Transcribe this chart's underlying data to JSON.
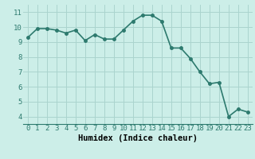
{
  "x": [
    0,
    1,
    2,
    3,
    4,
    5,
    6,
    7,
    8,
    9,
    10,
    11,
    12,
    13,
    14,
    15,
    16,
    17,
    18,
    19,
    20,
    21,
    22,
    23
  ],
  "y": [
    9.3,
    9.9,
    9.9,
    9.8,
    9.6,
    9.8,
    9.1,
    9.5,
    9.2,
    9.2,
    9.8,
    10.4,
    10.8,
    10.8,
    10.4,
    8.6,
    8.6,
    7.9,
    7.0,
    6.2,
    6.3,
    4.0,
    4.5,
    4.3
  ],
  "line_color": "#2d7a6e",
  "marker": "o",
  "marker_size": 2.5,
  "line_width": 1.2,
  "bg_color": "#cceee8",
  "grid_color": "#aad4ce",
  "xlabel": "Humidex (Indice chaleur)",
  "xlabel_fontsize": 7.5,
  "tick_fontsize": 6.5,
  "xlim": [
    -0.5,
    23.5
  ],
  "ylim": [
    3.5,
    11.5
  ],
  "yticks": [
    4,
    5,
    6,
    7,
    8,
    9,
    10,
    11
  ],
  "xticks": [
    0,
    1,
    2,
    3,
    4,
    5,
    6,
    7,
    8,
    9,
    10,
    11,
    12,
    13,
    14,
    15,
    16,
    17,
    18,
    19,
    20,
    21,
    22,
    23
  ]
}
